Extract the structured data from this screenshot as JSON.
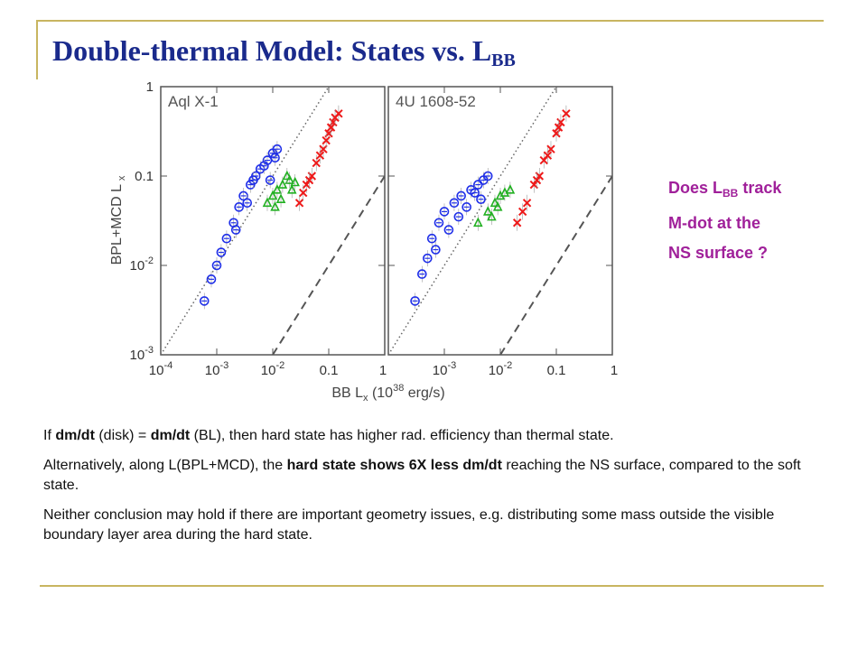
{
  "title": {
    "main": "Double-thermal Model: States vs. L",
    "sub": "BB"
  },
  "side_note": {
    "line1_pre": "Does L",
    "line1_sub": "BB",
    "line1_post": " track",
    "line2": "M-dot at the",
    "line3": "NS surface ?"
  },
  "paragraphs": {
    "p1": {
      "a": "If ",
      "b": "dm/dt",
      "c": " (disk) = ",
      "d": "dm/dt",
      "e": " (BL),  then hard state has higher rad. efficiency than thermal state."
    },
    "p2": {
      "a": "Alternatively, along L(BPL+MCD),  the ",
      "b": "hard state shows 6X less dm/dt",
      "c": " reaching the NS surface, compared to the soft state."
    },
    "p3": "Neither conclusion may hold if there are important geometry issues, e.g. distributing some mass outside the visible boundary layer area during the hard state."
  },
  "colors": {
    "title": "#1a2a8c",
    "side_note": "#a0209a",
    "frame": "#c8b560",
    "blue": "#1f2fe8",
    "green": "#22b022",
    "red": "#ee1a1a"
  },
  "chart_data": [
    {
      "type": "scatter",
      "title": "Aql X-1",
      "xlabel": "BB L",
      "xlabel_sub": "x",
      "xunit": "(10",
      "xunit_sup": "38",
      "xunit_tail": " erg/s)",
      "ylabel": "BPL+MCD L",
      "ylabel_sub": "x",
      "xscale": "log",
      "yscale": "log",
      "xlim": [
        0.0001,
        1
      ],
      "ylim": [
        0.001,
        1
      ],
      "x_ticks": [
        "10-4",
        "10-3",
        "10-2",
        "0.1",
        "1"
      ],
      "y_ticks": [
        "10-3",
        "10-2",
        "0.1",
        "1"
      ],
      "reference_lines": [
        "dotted: y = 10x",
        "dashed: y = x/10"
      ],
      "series": [
        {
          "color": "blue",
          "marker": "circle",
          "points": [
            [
              0.0006,
              0.004
            ],
            [
              0.0008,
              0.007
            ],
            [
              0.001,
              0.01
            ],
            [
              0.0012,
              0.014
            ],
            [
              0.0015,
              0.02
            ],
            [
              0.002,
              0.03
            ],
            [
              0.0025,
              0.045
            ],
            [
              0.003,
              0.06
            ],
            [
              0.004,
              0.08
            ],
            [
              0.005,
              0.1
            ],
            [
              0.006,
              0.12
            ],
            [
              0.008,
              0.15
            ],
            [
              0.01,
              0.18
            ],
            [
              0.012,
              0.2
            ],
            [
              0.009,
              0.09
            ],
            [
              0.0035,
              0.05
            ],
            [
              0.007,
              0.13
            ],
            [
              0.0045,
              0.09
            ],
            [
              0.011,
              0.16
            ],
            [
              0.0022,
              0.025
            ]
          ]
        },
        {
          "color": "green",
          "marker": "triangle",
          "points": [
            [
              0.008,
              0.05
            ],
            [
              0.01,
              0.06
            ],
            [
              0.012,
              0.07
            ],
            [
              0.015,
              0.08
            ],
            [
              0.02,
              0.09
            ],
            [
              0.018,
              0.1
            ],
            [
              0.014,
              0.055
            ],
            [
              0.022,
              0.07
            ],
            [
              0.025,
              0.085
            ],
            [
              0.011,
              0.045
            ]
          ]
        },
        {
          "color": "red",
          "marker": "cross",
          "points": [
            [
              0.03,
              0.05
            ],
            [
              0.04,
              0.08
            ],
            [
              0.05,
              0.1
            ],
            [
              0.06,
              0.14
            ],
            [
              0.08,
              0.2
            ],
            [
              0.1,
              0.3
            ],
            [
              0.12,
              0.4
            ],
            [
              0.15,
              0.5
            ],
            [
              0.13,
              0.45
            ],
            [
              0.09,
              0.25
            ],
            [
              0.045,
              0.09
            ],
            [
              0.07,
              0.17
            ],
            [
              0.035,
              0.065
            ],
            [
              0.11,
              0.35
            ]
          ]
        }
      ]
    },
    {
      "type": "scatter",
      "title": "4U 1608-52",
      "xscale": "log",
      "yscale": "log",
      "xlim": [
        0.0001,
        1
      ],
      "ylim": [
        0.001,
        1
      ],
      "x_ticks": [
        "10-3",
        "10-2",
        "0.1",
        "1"
      ],
      "reference_lines": [
        "dotted: y = 10x",
        "dashed: y = x/10"
      ],
      "series": [
        {
          "color": "blue",
          "marker": "circle",
          "points": [
            [
              0.0003,
              0.004
            ],
            [
              0.0004,
              0.008
            ],
            [
              0.0005,
              0.012
            ],
            [
              0.0006,
              0.02
            ],
            [
              0.0008,
              0.03
            ],
            [
              0.001,
              0.04
            ],
            [
              0.0015,
              0.05
            ],
            [
              0.002,
              0.06
            ],
            [
              0.003,
              0.07
            ],
            [
              0.004,
              0.08
            ],
            [
              0.005,
              0.09
            ],
            [
              0.006,
              0.1
            ],
            [
              0.0025,
              0.045
            ],
            [
              0.0012,
              0.025
            ],
            [
              0.0035,
              0.065
            ],
            [
              0.0045,
              0.055
            ],
            [
              0.0007,
              0.015
            ],
            [
              0.0018,
              0.035
            ]
          ]
        },
        {
          "color": "green",
          "marker": "triangle",
          "points": [
            [
              0.004,
              0.03
            ],
            [
              0.006,
              0.04
            ],
            [
              0.008,
              0.05
            ],
            [
              0.01,
              0.06
            ],
            [
              0.012,
              0.065
            ],
            [
              0.015,
              0.07
            ],
            [
              0.009,
              0.045
            ],
            [
              0.007,
              0.035
            ]
          ]
        },
        {
          "color": "red",
          "marker": "cross",
          "points": [
            [
              0.02,
              0.03
            ],
            [
              0.03,
              0.05
            ],
            [
              0.04,
              0.08
            ],
            [
              0.05,
              0.1
            ],
            [
              0.06,
              0.15
            ],
            [
              0.08,
              0.2
            ],
            [
              0.1,
              0.3
            ],
            [
              0.12,
              0.4
            ],
            [
              0.15,
              0.5
            ],
            [
              0.07,
              0.17
            ],
            [
              0.045,
              0.09
            ],
            [
              0.025,
              0.04
            ],
            [
              0.11,
              0.35
            ]
          ]
        }
      ]
    }
  ]
}
